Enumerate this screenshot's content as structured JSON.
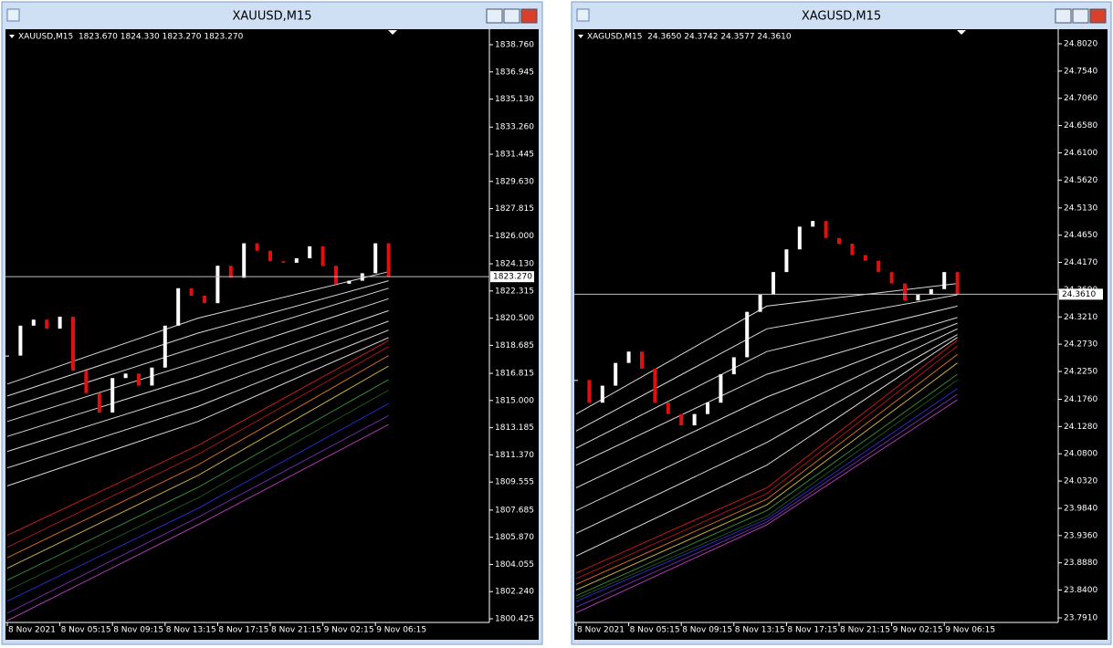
{
  "windows": [
    {
      "title": "XAUUSD,M15",
      "info": "XAUUSD,M15  1823.670 1824.330 1823.270 1823.270",
      "ylim": [
        1800.181,
        1839.613
      ],
      "yticks": [
        {
          "value": 1838.76,
          "label": "1838.760"
        },
        {
          "value": 1836.945,
          "label": "1836.945"
        },
        {
          "value": 1835.13,
          "label": "1835.130"
        },
        {
          "value": 1833.26,
          "label": "1833.260"
        },
        {
          "value": 1831.445,
          "label": "1831.445"
        },
        {
          "value": 1829.63,
          "label": "1829.630"
        },
        {
          "value": 1827.815,
          "label": "1827.815"
        },
        {
          "value": 1826,
          "label": "1826.000"
        },
        {
          "value": 1824.13,
          "label": "1824.130"
        },
        {
          "value": 1822.315,
          "label": "1822.315"
        },
        {
          "value": 1820.5,
          "label": "1820.500"
        },
        {
          "value": 1818.685,
          "label": "1818.685"
        },
        {
          "value": 1816.815,
          "label": "1816.815"
        },
        {
          "value": 1815,
          "label": "1815.000"
        },
        {
          "value": 1813.185,
          "label": "1813.185"
        },
        {
          "value": 1811.37,
          "label": "1811.370"
        },
        {
          "value": 1809.555,
          "label": "1809.555"
        },
        {
          "value": 1807.685,
          "label": "1807.685"
        },
        {
          "value": 1805.87,
          "label": "1805.870"
        },
        {
          "value": 1804.055,
          "label": "1804.055"
        },
        {
          "value": 1802.24,
          "label": "1802.240"
        },
        {
          "value": 1800.425,
          "label": "1800.425"
        }
      ],
      "xlabels": [
        "8 Nov 2021",
        "8 Nov 05:15",
        "8 Nov 09:15",
        "8 Nov 13:15",
        "8 Nov 17:15",
        "8 Nov 21:15",
        "9 Nov 02:15",
        "9 Nov 06:15"
      ],
      "last": {
        "value": 1823.27,
        "label": "1823.270"
      },
      "closes": [
        1818.0,
        1820.0,
        1820.4,
        1819.8,
        1820.6,
        1817.0,
        1815.5,
        1814.2,
        1816.5,
        1816.8,
        1816.0,
        1817.2,
        1820.0,
        1822.5,
        1822.0,
        1821.5,
        1824.0,
        1823.2,
        1825.5,
        1825.0,
        1824.3,
        1824.2,
        1824.5,
        1825.3,
        1824.0,
        1822.8,
        1823.0,
        1823.5,
        1825.5,
        1823.27
      ],
      "ribbon_x": [
        0,
        58,
        116
      ],
      "ribbons": [
        {
          "color": "#ffffff",
          "values": [
            1816.1,
            1820.5,
            1823.6
          ]
        },
        {
          "color": "#ffffff",
          "values": [
            1815.3,
            1819.5,
            1823.0
          ]
        },
        {
          "color": "#ffffff",
          "values": [
            1814.5,
            1818.6,
            1822.5
          ]
        },
        {
          "color": "#ffffff",
          "values": [
            1813.6,
            1817.6,
            1821.8
          ]
        },
        {
          "color": "#ffffff",
          "values": [
            1812.6,
            1816.6,
            1821.0
          ]
        },
        {
          "color": "#ffffff",
          "values": [
            1811.6,
            1815.6,
            1820.3
          ]
        },
        {
          "color": "#ffffff",
          "values": [
            1810.5,
            1814.6,
            1819.7
          ]
        },
        {
          "color": "#ffffff",
          "values": [
            1809.3,
            1813.6,
            1819.2
          ]
        },
        {
          "color": "#e02020",
          "values": [
            1806.0,
            1812.0,
            1819.0
          ]
        },
        {
          "color": "#c81818",
          "values": [
            1805.2,
            1811.4,
            1818.6
          ]
        },
        {
          "color": "#f08020",
          "values": [
            1804.5,
            1810.7,
            1818.0
          ]
        },
        {
          "color": "#e8d040",
          "values": [
            1803.8,
            1810.0,
            1817.3
          ]
        },
        {
          "color": "#40a040",
          "values": [
            1803.0,
            1809.2,
            1816.4
          ]
        },
        {
          "color": "#206020",
          "values": [
            1802.3,
            1808.5,
            1815.7
          ]
        },
        {
          "color": "#3030e0",
          "values": [
            1801.6,
            1807.8,
            1814.8
          ]
        },
        {
          "color": "#8030c0",
          "values": [
            1800.8,
            1807.2,
            1814.0
          ]
        },
        {
          "color": "#d040d0",
          "values": [
            1800.3,
            1806.7,
            1813.4
          ]
        }
      ]
    },
    {
      "title": "XAGUSD,M15",
      "info": "XAGUSD,M15  24.3650 24.3742 24.3577 24.3610",
      "ylim": [
        23.783,
        24.8229
      ],
      "yticks": [
        {
          "value": 24.802,
          "label": "24.8020"
        },
        {
          "value": 24.754,
          "label": "24.7540"
        },
        {
          "value": 24.706,
          "label": "24.7060"
        },
        {
          "value": 24.658,
          "label": "24.6580"
        },
        {
          "value": 24.61,
          "label": "24.6100"
        },
        {
          "value": 24.562,
          "label": "24.5620"
        },
        {
          "value": 24.513,
          "label": "24.5130"
        },
        {
          "value": 24.465,
          "label": "24.4650"
        },
        {
          "value": 24.417,
          "label": "24.4170"
        },
        {
          "value": 24.369,
          "label": "24.3690"
        },
        {
          "value": 24.321,
          "label": "24.3210"
        },
        {
          "value": 24.273,
          "label": "24.2730"
        },
        {
          "value": 24.225,
          "label": "24.2250"
        },
        {
          "value": 24.176,
          "label": "24.1760"
        },
        {
          "value": 24.128,
          "label": "24.1280"
        },
        {
          "value": 24.08,
          "label": "24.0800"
        },
        {
          "value": 24.032,
          "label": "24.0320"
        },
        {
          "value": 23.984,
          "label": "23.9840"
        },
        {
          "value": 23.936,
          "label": "23.9360"
        },
        {
          "value": 23.888,
          "label": "23.8880"
        },
        {
          "value": 23.84,
          "label": "23.8400"
        },
        {
          "value": 23.791,
          "label": "23.7910"
        }
      ],
      "xlabels": [
        "8 Nov 2021",
        "8 Nov 05:15",
        "8 Nov 09:15",
        "8 Nov 13:15",
        "8 Nov 17:15",
        "8 Nov 21:15",
        "9 Nov 02:15",
        "9 Nov 06:15"
      ],
      "last": {
        "value": 24.361,
        "label": "24.3610"
      },
      "closes": [
        24.21,
        24.17,
        24.2,
        24.24,
        24.26,
        24.23,
        24.17,
        24.15,
        24.13,
        24.15,
        24.17,
        24.22,
        24.25,
        24.33,
        24.36,
        24.4,
        24.44,
        24.48,
        24.49,
        24.46,
        24.45,
        24.43,
        24.42,
        24.4,
        24.38,
        24.35,
        24.36,
        24.37,
        24.4,
        24.361
      ],
      "ribbon_x": [
        0,
        58,
        116
      ],
      "ribbons": [
        {
          "color": "#ffffff",
          "values": [
            24.15,
            24.34,
            24.38
          ]
        },
        {
          "color": "#ffffff",
          "values": [
            24.12,
            24.3,
            24.36
          ]
        },
        {
          "color": "#ffffff",
          "values": [
            24.09,
            24.26,
            24.34
          ]
        },
        {
          "color": "#ffffff",
          "values": [
            24.06,
            24.22,
            24.32
          ]
        },
        {
          "color": "#ffffff",
          "values": [
            24.02,
            24.18,
            24.31
          ]
        },
        {
          "color": "#ffffff",
          "values": [
            23.98,
            24.14,
            24.3
          ]
        },
        {
          "color": "#ffffff",
          "values": [
            23.94,
            24.1,
            24.29
          ]
        },
        {
          "color": "#ffffff",
          "values": [
            23.9,
            24.06,
            24.285
          ]
        },
        {
          "color": "#e02020",
          "values": [
            23.87,
            24.02,
            24.28
          ]
        },
        {
          "color": "#c81818",
          "values": [
            23.86,
            24.01,
            24.27
          ]
        },
        {
          "color": "#f08020",
          "values": [
            23.85,
            24.0,
            24.255
          ]
        },
        {
          "color": "#e8d040",
          "values": [
            23.84,
            23.99,
            24.24
          ]
        },
        {
          "color": "#40a040",
          "values": [
            23.83,
            23.98,
            24.22
          ]
        },
        {
          "color": "#206020",
          "values": [
            23.825,
            23.97,
            24.21
          ]
        },
        {
          "color": "#3030e0",
          "values": [
            23.82,
            23.965,
            24.195
          ]
        },
        {
          "color": "#8030c0",
          "values": [
            23.81,
            23.96,
            24.185
          ]
        },
        {
          "color": "#d040d0",
          "values": [
            23.8,
            23.955,
            24.175
          ]
        }
      ]
    }
  ]
}
